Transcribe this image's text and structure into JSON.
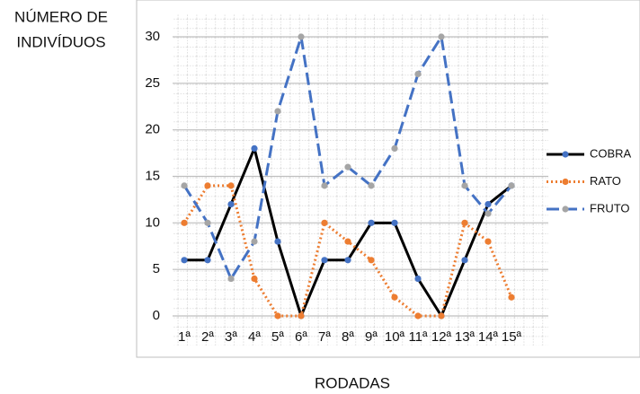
{
  "chart_data": {
    "type": "line",
    "y_label": [
      "NÚMERO DE",
      "INDIVÍDUOS"
    ],
    "x_label": "RODADAS",
    "categories": [
      "1ª",
      "2ª",
      "3ª",
      "4ª",
      "5ª",
      "6ª",
      "7ª",
      "8ª",
      "9ª",
      "10ª",
      "11ª",
      "12ª",
      "13ª",
      "14ª",
      "15ª"
    ],
    "series": [
      {
        "name": "COBRA",
        "color": "#000000",
        "marker_color": "#4472c4",
        "dash": "solid",
        "values": [
          6,
          6,
          12,
          18,
          8,
          0,
          6,
          6,
          10,
          10,
          4,
          0,
          6,
          12,
          14
        ]
      },
      {
        "name": "RATO",
        "color": "#ed7d31",
        "marker_color": "#ed7d31",
        "dash": "dotted",
        "values": [
          10,
          14,
          14,
          4,
          0,
          0,
          10,
          8,
          6,
          2,
          0,
          0,
          10,
          8,
          2
        ]
      },
      {
        "name": "FRUTO",
        "color": "#4472c4",
        "marker_color": "#a5a5a5",
        "dash": "dashed",
        "values": [
          14,
          10,
          4,
          8,
          22,
          30,
          14,
          16,
          14,
          18,
          26,
          30,
          14,
          11,
          14
        ]
      }
    ],
    "ylim": [
      0,
      30
    ],
    "yticks": [
      0,
      5,
      10,
      15,
      20,
      25,
      30
    ],
    "grid": true,
    "legend": "right"
  }
}
